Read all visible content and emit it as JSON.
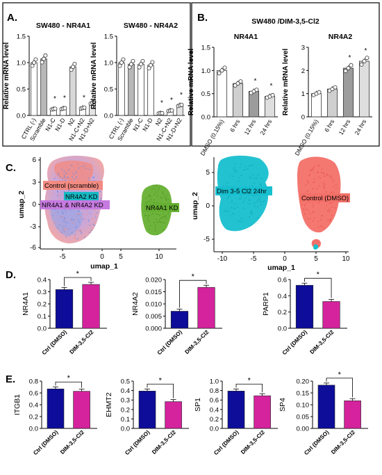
{
  "panels": {
    "A": {
      "letter": "A.",
      "charts": [
        {
          "type": "bar",
          "title": "SW480 - NR4A1",
          "ylabel": "Relative mRNA level",
          "ylim": [
            0,
            1.5
          ],
          "yticks": [
            "0.0",
            "0.5",
            "1.0",
            "1.5"
          ],
          "categories": [
            "CTRL (-)",
            "Scramble",
            "N1-C",
            "N1-D",
            "N2",
            "N1-C+N2",
            "N1-D+N2"
          ],
          "values": [
            1.0,
            1.07,
            0.12,
            0.13,
            0.92,
            0.14,
            0.24
          ],
          "sig": [
            "",
            "",
            "*",
            "*",
            "",
            "*",
            "*"
          ]
        },
        {
          "type": "bar",
          "title": "SW480 - NR4A2",
          "ylabel": "Relative mRNA level",
          "ylim": [
            0,
            1.5
          ],
          "yticks": [
            "0.0",
            "0.5",
            "1.0",
            "1.5"
          ],
          "categories": [
            "CTRL (-)",
            "Scramble",
            "N1-C",
            "N1-D",
            "N2",
            "N1-C+N2",
            "N1-D+N2"
          ],
          "values": [
            1.0,
            0.97,
            0.97,
            0.95,
            0.04,
            0.09,
            0.19
          ],
          "sig": [
            "",
            "",
            "",
            "",
            "*",
            "*",
            "*"
          ]
        }
      ]
    },
    "B": {
      "letter": "B.",
      "title": "SW480 /DIM-3,5-Cl2",
      "charts": [
        {
          "type": "bar",
          "title": "NR4A1",
          "ylabel": "Relative mRNA level",
          "ylim": [
            0,
            1.5
          ],
          "yticks": [
            "0.0",
            "0.5",
            "1.0",
            "1.5"
          ],
          "categories": [
            "DMSO (0.15%)",
            "6 hrs",
            "12 hrs",
            "24 hrs"
          ],
          "values": [
            1.0,
            0.72,
            0.55,
            0.44
          ],
          "sig": [
            "",
            "",
            "*",
            "*"
          ]
        },
        {
          "type": "bar",
          "title": "NR4A2",
          "ylabel": "Relative mRNA level",
          "ylim": [
            0,
            3
          ],
          "yticks": [
            "0",
            "1",
            "2",
            "3"
          ],
          "categories": [
            "DMSO (0.15%)",
            "6 hrs",
            "12 hrs",
            "24 hrs"
          ],
          "values": [
            1.0,
            1.2,
            2.1,
            2.4
          ],
          "sig": [
            "",
            "",
            "*",
            "*"
          ]
        }
      ]
    },
    "C": {
      "letter": "C.",
      "charts": [
        {
          "type": "scatter",
          "xlabel": "umap_1",
          "ylabel": "umap_2",
          "xticks": [
            "-5",
            "0",
            "5",
            "10"
          ],
          "yticks": [
            "-6",
            "-3",
            "0",
            "3",
            "6"
          ],
          "labels": [
            "Control (scramble)",
            "NR4A2 KD",
            "NR4A1 & NR4A2 KD",
            "NR4A1 KD"
          ],
          "colors": [
            "#f28b82",
            "#17b9c4",
            "#c77ae0",
            "#66b032"
          ]
        },
        {
          "type": "scatter",
          "xlabel": "umap_1",
          "ylabel": "umap_2",
          "xticks": [
            "-10",
            "-5",
            "0",
            "5",
            "10"
          ],
          "yticks": [
            "-5",
            "0",
            "5"
          ],
          "labels": [
            "Dim 3-5 Cl2 24hr",
            "Control (DMSO)"
          ],
          "colors": [
            "#17bfcf",
            "#f37068"
          ]
        }
      ]
    },
    "D": {
      "letter": "D.",
      "charts": [
        {
          "type": "bar",
          "ylabel": "NR4A1",
          "ylim": [
            0,
            0.4
          ],
          "yticks": [
            "0.0",
            "0.1",
            "0.2",
            "0.3",
            "0.4"
          ],
          "categories": [
            "Ctrl (DMSO)",
            "DIM-3,5-Cl2"
          ],
          "values": [
            0.318,
            0.36
          ],
          "sig": "*"
        },
        {
          "type": "bar",
          "ylabel": "NR4A2",
          "ylim": [
            0,
            0.02
          ],
          "yticks": [
            "0.000",
            "0.005",
            "0.010",
            "0.015",
            "0.020"
          ],
          "categories": [
            "Ctrl (DMSO)",
            "DIM-3,5-Cl2"
          ],
          "values": [
            0.007,
            0.0168
          ],
          "sig": "*"
        },
        {
          "type": "bar",
          "ylabel": "PARP1",
          "ylim": [
            0,
            0.6
          ],
          "yticks": [
            "0.0",
            "0.2",
            "0.4",
            "0.6"
          ],
          "categories": [
            "Ctrl (DMSO)",
            "DIM-3,5-Cl2"
          ],
          "values": [
            0.53,
            0.33
          ],
          "sig": "*"
        }
      ]
    },
    "E": {
      "letter": "E.",
      "charts": [
        {
          "type": "bar",
          "ylabel": "ITGB1",
          "ylim": [
            0,
            0.8
          ],
          "yticks": [
            "0.0",
            "0.2",
            "0.4",
            "0.6",
            "0.8"
          ],
          "categories": [
            "Ctrl (DMSO)",
            "DIM-3,5-Cl2"
          ],
          "values": [
            0.668,
            0.628
          ],
          "sig": "*"
        },
        {
          "type": "bar",
          "ylabel": "EHMT2",
          "ylim": [
            0,
            0.5
          ],
          "yticks": [
            "0.0",
            "0.1",
            "0.2",
            "0.3",
            "0.4",
            "0.5"
          ],
          "categories": [
            "Ctrl (DMSO)",
            "DIM-3,5-Cl2"
          ],
          "values": [
            0.395,
            0.283
          ],
          "sig": "*"
        },
        {
          "type": "bar",
          "ylabel": "SP1",
          "ylim": [
            0,
            1.0
          ],
          "yticks": [
            "0.0",
            "0.2",
            "0.4",
            "0.6",
            "0.8",
            "1.0"
          ],
          "categories": [
            "Ctrl (DMSO)",
            "DIM-3,5-Cl2"
          ],
          "values": [
            0.79,
            0.69
          ],
          "sig": "*"
        },
        {
          "type": "bar",
          "ylabel": "SP4",
          "ylim": [
            0,
            0.2
          ],
          "yticks": [
            "0.00",
            "0.05",
            "0.10",
            "0.15",
            "0.20"
          ],
          "categories": [
            "Ctrl (DMSO)",
            "DIM-3,5-Cl2"
          ],
          "values": [
            0.183,
            0.117
          ],
          "sig": "*"
        }
      ]
    }
  },
  "colors": {
    "ctrl": "#0d0d99",
    "dim": "#d4239c",
    "bar_fill": "#ffffff",
    "bar_stroke": "#333333"
  }
}
